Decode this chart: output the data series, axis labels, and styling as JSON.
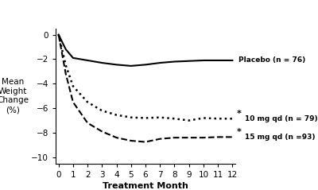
{
  "xlabel": "Treatment Month",
  "ylabel": "Mean\nWeight\nChange\n(%)",
  "xlim": [
    -0.2,
    12.2
  ],
  "ylim": [
    -10.5,
    0.5
  ],
  "yticks": [
    0,
    -2,
    -4,
    -6,
    -8,
    -10
  ],
  "xticks": [
    0,
    1,
    2,
    3,
    4,
    5,
    6,
    7,
    8,
    9,
    10,
    11,
    12
  ],
  "placebo": {
    "x": [
      0,
      0.5,
      1,
      2,
      3,
      4,
      5,
      6,
      7,
      8,
      9,
      10,
      11,
      12
    ],
    "y": [
      0,
      -1.2,
      -1.9,
      -2.1,
      -2.3,
      -2.45,
      -2.55,
      -2.45,
      -2.3,
      -2.2,
      -2.15,
      -2.1,
      -2.1,
      -2.1
    ],
    "label": "Placebo (n = 76)",
    "color": "#000000",
    "linewidth": 1.5
  },
  "mg10": {
    "x": [
      0,
      0.5,
      1,
      2,
      3,
      4,
      5,
      6,
      7,
      8,
      9,
      10,
      11,
      12
    ],
    "y": [
      0,
      -2.5,
      -4.2,
      -5.5,
      -6.2,
      -6.55,
      -6.75,
      -6.8,
      -6.75,
      -6.85,
      -7.0,
      -6.8,
      -6.85,
      -6.85
    ],
    "label": "10 mg qd (n = 79)",
    "color": "#000000",
    "linewidth": 1.5
  },
  "mg15": {
    "x": [
      0,
      0.5,
      1,
      2,
      3,
      4,
      5,
      6,
      7,
      8,
      9,
      10,
      11,
      12
    ],
    "y": [
      0,
      -3.2,
      -5.5,
      -7.2,
      -7.9,
      -8.4,
      -8.65,
      -8.75,
      -8.5,
      -8.4,
      -8.4,
      -8.4,
      -8.35,
      -8.35
    ],
    "label": "15 mg qd (n =93)",
    "color": "#000000",
    "linewidth": 1.5
  },
  "header_bg": "#1c1c1c",
  "header_text_color": "#ffffff",
  "red_bar_color": "#cc0000",
  "bg_color": "#ffffff"
}
